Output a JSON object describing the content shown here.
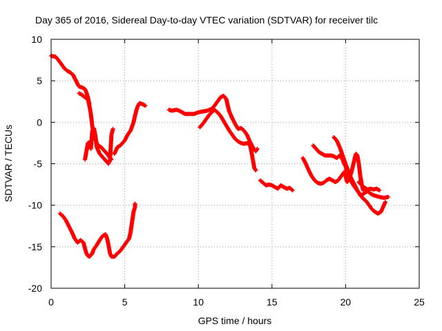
{
  "chart_data": {
    "type": "scatter",
    "title": "Day 365 of 2016, Sidereal Day-to-day VTEC variation (SDTVAR) for receiver tilc",
    "xlabel": "GPS time / hours",
    "ylabel": "SDTVAR / TECUs",
    "xlim": [
      0,
      25
    ],
    "ylim": [
      -20,
      10
    ],
    "xticks": [
      0,
      5,
      10,
      15,
      20,
      25
    ],
    "yticks": [
      -20,
      -15,
      -10,
      -5,
      0,
      5,
      10
    ],
    "grid": true,
    "marker": "plus",
    "color": "#ff0000",
    "series": [
      {
        "points": [
          [
            0.0,
            8.0
          ],
          [
            0.3,
            7.9
          ],
          [
            0.5,
            7.5
          ],
          [
            0.7,
            7.0
          ],
          [
            0.9,
            6.5
          ],
          [
            1.1,
            6.2
          ],
          [
            1.3,
            6.0
          ],
          [
            1.5,
            5.7
          ],
          [
            1.6,
            5.3
          ],
          [
            1.7,
            5.0
          ],
          [
            1.8,
            4.6
          ],
          [
            1.9,
            4.3
          ],
          [
            2.1,
            4.2
          ],
          [
            2.3,
            4.0
          ],
          [
            2.4,
            3.6
          ],
          [
            2.5,
            3.0
          ],
          [
            2.6,
            2.2
          ]
        ]
      },
      {
        "points": [
          [
            1.9,
            3.5
          ],
          [
            2.1,
            3.3
          ],
          [
            2.3,
            3.0
          ],
          [
            2.5,
            2.8
          ],
          [
            2.6,
            2.0
          ],
          [
            2.7,
            1.0
          ],
          [
            2.8,
            -0.5
          ],
          [
            2.9,
            -1.5
          ],
          [
            3.0,
            -2.0
          ],
          [
            3.1,
            -2.5
          ],
          [
            3.2,
            -2.8
          ],
          [
            3.4,
            -3.0
          ],
          [
            3.6,
            -3.4
          ],
          [
            3.8,
            -3.8
          ],
          [
            4.0,
            -4.3
          ],
          [
            4.1,
            -4.5
          ]
        ]
      },
      {
        "points": [
          [
            2.3,
            -4.5
          ],
          [
            2.4,
            -3.5
          ],
          [
            2.5,
            -2.5
          ],
          [
            2.6,
            -2.4
          ],
          [
            2.7,
            -3.2
          ],
          [
            2.8,
            -1.0
          ],
          [
            2.9,
            -0.7
          ],
          [
            3.0,
            -1.5
          ],
          [
            3.1,
            -3.0
          ],
          [
            3.3,
            -3.8
          ],
          [
            3.5,
            -4.2
          ],
          [
            3.7,
            -4.6
          ],
          [
            3.9,
            -5.0
          ],
          [
            4.0,
            -4.5
          ],
          [
            4.1,
            -1.5
          ],
          [
            4.2,
            -0.8
          ]
        ]
      },
      {
        "points": [
          [
            4.3,
            -3.8
          ],
          [
            4.5,
            -3.0
          ],
          [
            4.7,
            -2.8
          ],
          [
            5.0,
            -2.2
          ],
          [
            5.2,
            -1.5
          ],
          [
            5.4,
            -1.0
          ],
          [
            5.5,
            -0.5
          ],
          [
            5.6,
            0.0
          ],
          [
            5.7,
            0.8
          ],
          [
            5.8,
            1.5
          ],
          [
            5.9,
            2.0
          ],
          [
            6.0,
            2.3
          ],
          [
            6.2,
            2.2
          ],
          [
            6.4,
            2.0
          ]
        ]
      },
      {
        "points": [
          [
            0.6,
            -11.0
          ],
          [
            0.8,
            -11.3
          ],
          [
            1.0,
            -11.8
          ],
          [
            1.2,
            -12.5
          ],
          [
            1.4,
            -13.2
          ],
          [
            1.6,
            -14.0
          ],
          [
            1.8,
            -14.5
          ],
          [
            2.0,
            -14.2
          ],
          [
            2.2,
            -14.5
          ],
          [
            2.3,
            -15.2
          ],
          [
            2.4,
            -15.8
          ],
          [
            2.5,
            -16.1
          ],
          [
            2.6,
            -16.2
          ],
          [
            2.8,
            -15.8
          ],
          [
            2.9,
            -15.3
          ],
          [
            3.1,
            -14.8
          ],
          [
            3.3,
            -14.2
          ],
          [
            3.5,
            -13.7
          ],
          [
            3.7,
            -13.5
          ],
          [
            3.8,
            -14.0
          ],
          [
            3.9,
            -14.8
          ],
          [
            4.0,
            -15.8
          ],
          [
            4.1,
            -16.2
          ],
          [
            4.3,
            -16.2
          ],
          [
            4.5,
            -15.8
          ],
          [
            4.7,
            -15.5
          ],
          [
            4.9,
            -15.0
          ],
          [
            5.1,
            -14.5
          ],
          [
            5.3,
            -14.0
          ],
          [
            5.4,
            -13.2
          ],
          [
            5.5,
            -12.0
          ],
          [
            5.6,
            -10.8
          ],
          [
            5.7,
            -10.2
          ],
          [
            5.7,
            -9.8
          ]
        ]
      },
      {
        "points": [
          [
            8.0,
            1.5
          ],
          [
            8.2,
            1.4
          ],
          [
            8.5,
            1.5
          ],
          [
            8.7,
            1.4
          ],
          [
            8.9,
            1.2
          ],
          [
            9.1,
            1.0
          ],
          [
            9.4,
            1.0
          ],
          [
            9.7,
            1.0
          ],
          [
            10.0,
            1.2
          ],
          [
            10.3,
            1.3
          ],
          [
            10.6,
            1.4
          ],
          [
            10.9,
            1.6
          ],
          [
            11.1,
            2.0
          ],
          [
            11.3,
            2.5
          ],
          [
            11.5,
            3.0
          ],
          [
            11.7,
            3.2
          ],
          [
            11.9,
            2.8
          ],
          [
            12.0,
            2.0
          ],
          [
            12.1,
            1.3
          ],
          [
            12.3,
            0.5
          ],
          [
            12.5,
            -0.2
          ],
          [
            12.7,
            -0.8
          ],
          [
            12.9,
            -0.7
          ],
          [
            13.1,
            -1.0
          ],
          [
            13.3,
            -1.5
          ],
          [
            13.5,
            -2.3
          ],
          [
            13.7,
            -3.0
          ],
          [
            13.9,
            -3.5
          ],
          [
            14.0,
            -3.2
          ]
        ]
      },
      {
        "points": [
          [
            10.1,
            -0.6
          ],
          [
            10.3,
            -0.2
          ],
          [
            10.5,
            0.3
          ],
          [
            10.7,
            0.8
          ],
          [
            10.9,
            1.2
          ],
          [
            11.1,
            1.5
          ],
          [
            11.3,
            1.2
          ],
          [
            11.5,
            0.8
          ],
          [
            11.7,
            0.2
          ],
          [
            11.9,
            -0.4
          ],
          [
            12.1,
            -1.0
          ],
          [
            12.3,
            -1.5
          ],
          [
            12.5,
            -2.0
          ],
          [
            12.7,
            -2.3
          ],
          [
            12.9,
            -2.5
          ],
          [
            13.1,
            -2.6
          ],
          [
            13.3,
            -2.5
          ],
          [
            13.5,
            -2.7
          ],
          [
            13.6,
            -3.5
          ],
          [
            13.7,
            -4.5
          ],
          [
            13.8,
            -5.5
          ],
          [
            13.9,
            -5.8
          ]
        ]
      },
      {
        "points": [
          [
            14.2,
            -7.0
          ],
          [
            14.4,
            -7.3
          ],
          [
            14.6,
            -7.6
          ],
          [
            14.8,
            -7.5
          ],
          [
            15.0,
            -7.6
          ],
          [
            15.2,
            -7.8
          ],
          [
            15.4,
            -8.0
          ],
          [
            15.6,
            -7.6
          ],
          [
            15.8,
            -7.8
          ],
          [
            16.0,
            -8.0
          ],
          [
            16.2,
            -7.9
          ],
          [
            16.4,
            -8.2
          ]
        ]
      },
      {
        "points": [
          [
            17.1,
            -4.3
          ],
          [
            17.3,
            -5.0
          ],
          [
            17.5,
            -5.8
          ],
          [
            17.7,
            -6.5
          ],
          [
            17.9,
            -7.0
          ],
          [
            18.1,
            -7.3
          ],
          [
            18.3,
            -7.4
          ],
          [
            18.5,
            -7.3
          ],
          [
            18.7,
            -7.0
          ],
          [
            18.9,
            -6.8
          ],
          [
            19.1,
            -7.0
          ],
          [
            19.3,
            -7.2
          ],
          [
            19.5,
            -7.0
          ],
          [
            19.7,
            -6.5
          ],
          [
            19.9,
            -6.0
          ],
          [
            20.0,
            -6.5
          ],
          [
            20.1,
            -7.2
          ],
          [
            20.2,
            -7.0
          ],
          [
            20.4,
            -6.0
          ],
          [
            20.6,
            -4.5
          ],
          [
            20.7,
            -3.8
          ],
          [
            20.8,
            -4.0
          ],
          [
            20.9,
            -5.0
          ],
          [
            21.0,
            -6.5
          ],
          [
            21.1,
            -7.5
          ],
          [
            21.2,
            -8.2
          ]
        ]
      },
      {
        "points": [
          [
            17.8,
            -2.8
          ],
          [
            18.0,
            -3.2
          ],
          [
            18.2,
            -3.6
          ],
          [
            18.4,
            -3.8
          ],
          [
            18.6,
            -4.0
          ],
          [
            18.8,
            -4.0
          ],
          [
            19.0,
            -4.0
          ],
          [
            19.2,
            -4.1
          ],
          [
            19.4,
            -4.3
          ],
          [
            19.6,
            -4.0
          ],
          [
            19.8,
            -4.5
          ],
          [
            19.9,
            -5.0
          ],
          [
            20.0,
            -5.3
          ],
          [
            20.1,
            -6.0
          ],
          [
            20.3,
            -6.8
          ],
          [
            20.5,
            -7.5
          ],
          [
            20.7,
            -8.0
          ],
          [
            20.9,
            -8.5
          ],
          [
            21.1,
            -8.8
          ],
          [
            21.3,
            -8.5
          ],
          [
            21.5,
            -8.3
          ],
          [
            21.7,
            -8.6
          ],
          [
            21.9,
            -8.8
          ],
          [
            22.1,
            -8.9
          ],
          [
            22.3,
            -9.0
          ],
          [
            22.6,
            -9.1
          ],
          [
            22.9,
            -9.0
          ]
        ]
      },
      {
        "points": [
          [
            19.2,
            -1.8
          ],
          [
            19.4,
            -2.2
          ],
          [
            19.6,
            -3.0
          ],
          [
            19.8,
            -4.0
          ],
          [
            20.0,
            -5.0
          ],
          [
            20.2,
            -6.0
          ],
          [
            20.4,
            -6.8
          ],
          [
            20.6,
            -7.5
          ],
          [
            20.8,
            -8.2
          ],
          [
            21.0,
            -8.8
          ],
          [
            21.2,
            -9.2
          ],
          [
            21.4,
            -9.5
          ],
          [
            21.6,
            -10.0
          ],
          [
            21.8,
            -10.5
          ],
          [
            22.0,
            -10.8
          ],
          [
            22.2,
            -11.0
          ],
          [
            22.4,
            -10.8
          ],
          [
            22.5,
            -10.4
          ],
          [
            22.6,
            -10.0
          ],
          [
            22.7,
            -9.6
          ]
        ]
      },
      {
        "points": [
          [
            20.9,
            -7.2
          ],
          [
            21.1,
            -7.6
          ],
          [
            21.3,
            -7.9
          ],
          [
            21.5,
            -8.1
          ],
          [
            21.7,
            -8.0
          ],
          [
            21.9,
            -8.1
          ],
          [
            22.1,
            -8.0
          ],
          [
            22.3,
            -8.2
          ]
        ]
      }
    ]
  }
}
